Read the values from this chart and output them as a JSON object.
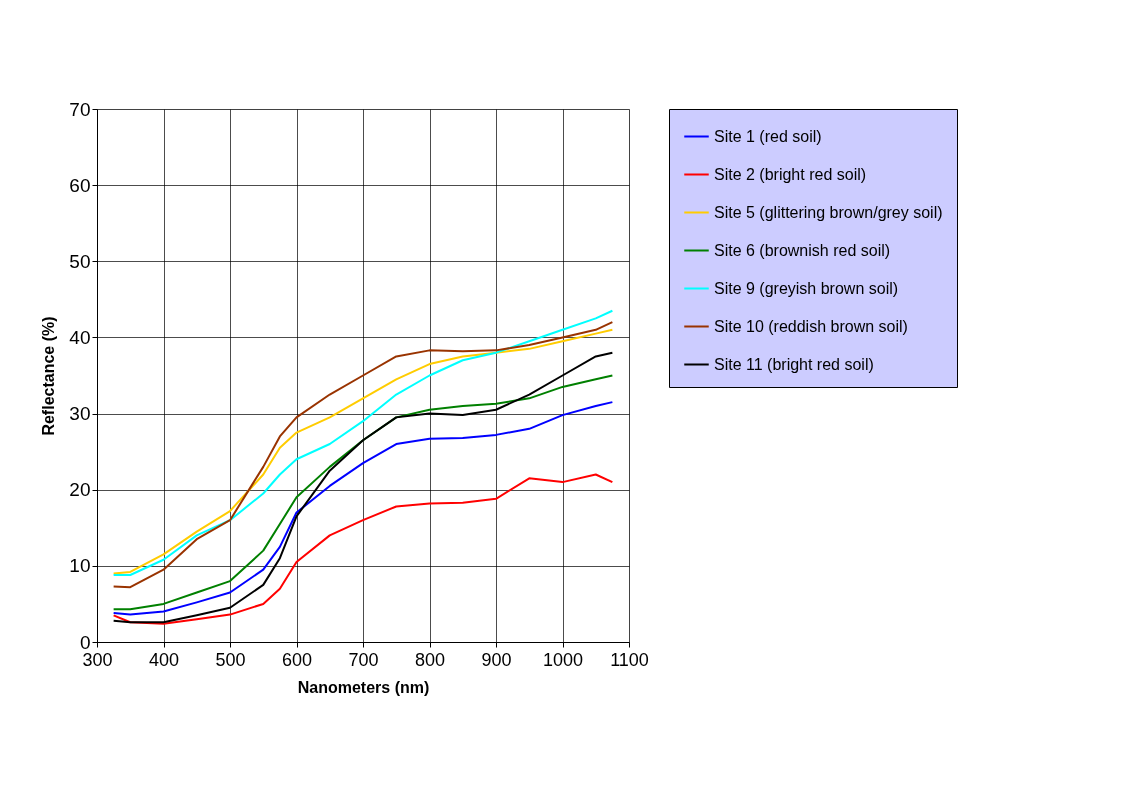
{
  "chart_data": {
    "type": "line",
    "xlabel": "Nanometers (nm)",
    "ylabel": "Reflectance (%)",
    "x": [
      325,
      350,
      400,
      450,
      500,
      550,
      575,
      600,
      650,
      700,
      750,
      800,
      850,
      900,
      950,
      1000,
      1050,
      1075
    ],
    "xlim": [
      300,
      1100
    ],
    "xticks": [
      300,
      400,
      500,
      600,
      700,
      800,
      900,
      1000,
      1100
    ],
    "ylim": [
      0,
      70
    ],
    "yticks": [
      0,
      10,
      20,
      30,
      40,
      50,
      60,
      70
    ],
    "grid": true,
    "legend": "right",
    "marker": "none",
    "line_style": "solid",
    "series": [
      {
        "name": "Site 1 (red soil)",
        "color": "#0000ff",
        "values": [
          3.8,
          3.6,
          4,
          5.2,
          6.5,
          9.5,
          12.5,
          17,
          20.5,
          23.5,
          26,
          26.7,
          26.8,
          27.2,
          28,
          29.8,
          31,
          31.5
        ]
      },
      {
        "name": "Site 2 (bright red soil)",
        "color": "#ff0000",
        "values": [
          3.5,
          2.6,
          2.4,
          3,
          3.6,
          5,
          7,
          10.5,
          14,
          16,
          17.8,
          18.2,
          18.3,
          18.8,
          21.5,
          21,
          22,
          21
        ]
      },
      {
        "name": "Site 5 (glittering brown/grey soil)",
        "color": "#ffcc00",
        "values": [
          9,
          9.2,
          11.5,
          14.5,
          17.2,
          22,
          25.5,
          27.5,
          29.5,
          32,
          34.5,
          36.5,
          37.5,
          38,
          38.5,
          39.5,
          40.5,
          41
        ]
      },
      {
        "name": "Site 6 (brownish red soil)",
        "color": "#008000",
        "values": [
          4.3,
          4.3,
          5,
          6.5,
          8,
          12,
          15.5,
          19,
          23,
          26.5,
          29.5,
          30.5,
          31,
          31.3,
          32,
          33.5,
          34.5,
          35
        ]
      },
      {
        "name": "Site 9 (greyish brown soil)",
        "color": "#00ffff",
        "values": [
          8.8,
          8.8,
          10.8,
          14,
          16,
          19.5,
          22,
          24,
          26,
          29,
          32.5,
          35,
          37,
          38,
          39.5,
          41,
          42.5,
          43.5
        ]
      },
      {
        "name": "Site 10 (reddish brown soil)",
        "color": "#993300",
        "values": [
          7.3,
          7.2,
          9.5,
          13.5,
          16,
          23,
          27,
          29.5,
          32.5,
          35,
          37.5,
          38.3,
          38.2,
          38.3,
          39,
          40,
          41,
          42
        ]
      },
      {
        "name": "Site 11 (bright red soil)",
        "color": "#000000",
        "values": [
          2.8,
          2.6,
          2.6,
          3.5,
          4.5,
          7.5,
          11,
          16.5,
          22.5,
          26.5,
          29.5,
          30,
          29.8,
          30.5,
          32.5,
          35,
          37.5,
          38
        ]
      }
    ]
  }
}
